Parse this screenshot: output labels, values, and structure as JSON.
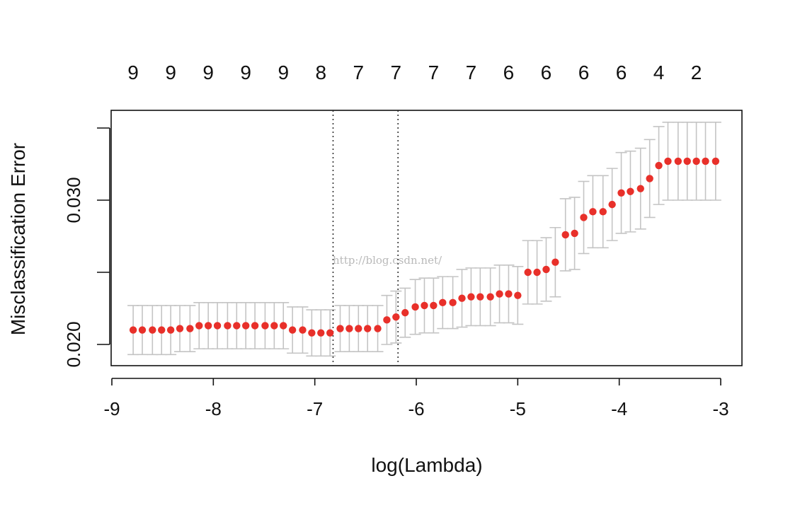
{
  "chart_data": {
    "type": "scatter",
    "title": "",
    "xlabel": "log(Lambda)",
    "ylabel": "Misclassification Error",
    "xlim": [
      -9,
      -3
    ],
    "ylim": [
      0.0192,
      0.0352
    ],
    "x_ticks": [
      -9,
      -8,
      -7,
      -6,
      -5,
      -4,
      -3
    ],
    "x_tick_labels": [
      "-9",
      "-8",
      "-7",
      "-6",
      "-5",
      "-4",
      "-3"
    ],
    "y_ticks": [
      0.02,
      0.025,
      0.03,
      0.035
    ],
    "y_tick_labels": [
      "0.020",
      "",
      "0.030",
      ""
    ],
    "top_axis_labels": [
      {
        "x": -8.79,
        "label": "9"
      },
      {
        "x": -8.42,
        "label": "9"
      },
      {
        "x": -8.05,
        "label": "9"
      },
      {
        "x": -7.68,
        "label": "9"
      },
      {
        "x": -7.31,
        "label": "9"
      },
      {
        "x": -6.94,
        "label": "8"
      },
      {
        "x": -6.57,
        "label": "7"
      },
      {
        "x": -6.2,
        "label": "7"
      },
      {
        "x": -5.83,
        "label": "7"
      },
      {
        "x": -5.46,
        "label": "7"
      },
      {
        "x": -5.09,
        "label": "6"
      },
      {
        "x": -4.72,
        "label": "6"
      },
      {
        "x": -4.35,
        "label": "6"
      },
      {
        "x": -3.98,
        "label": "6"
      },
      {
        "x": -3.61,
        "label": "4"
      },
      {
        "x": -3.24,
        "label": "2"
      }
    ],
    "vlines": [
      -6.82,
      -6.18
    ],
    "grid": false,
    "legend": "none",
    "watermark": "http://blog.csdn.net/",
    "series": [
      {
        "color": "#e8302a",
        "errorbar_color": "#c4c4c4",
        "x": [
          -8.79,
          -8.7,
          -8.6,
          -8.51,
          -8.42,
          -8.33,
          -8.23,
          -8.14,
          -8.05,
          -7.96,
          -7.86,
          -7.77,
          -7.68,
          -7.59,
          -7.49,
          -7.4,
          -7.31,
          -7.22,
          -7.12,
          -7.03,
          -6.94,
          -6.85,
          -6.75,
          -6.66,
          -6.57,
          -6.48,
          -6.38,
          -6.29,
          -6.2,
          -6.11,
          -6.01,
          -5.92,
          -5.83,
          -5.74,
          -5.64,
          -5.55,
          -5.46,
          -5.37,
          -5.27,
          -5.18,
          -5.09,
          -5.0,
          -4.9,
          -4.81,
          -4.72,
          -4.63,
          -4.53,
          -4.44,
          -4.35,
          -4.26,
          -4.16,
          -4.07,
          -3.98,
          -3.89,
          -3.79,
          -3.7,
          -3.61,
          -3.52,
          -3.42,
          -3.33,
          -3.24,
          -3.15,
          -3.05
        ],
        "y": [
          0.021,
          0.021,
          0.021,
          0.021,
          0.021,
          0.0211,
          0.0211,
          0.0213,
          0.0213,
          0.0213,
          0.0213,
          0.0213,
          0.0213,
          0.0213,
          0.0213,
          0.0213,
          0.0213,
          0.021,
          0.021,
          0.0208,
          0.0208,
          0.0208,
          0.0211,
          0.0211,
          0.0211,
          0.0211,
          0.0211,
          0.0217,
          0.0219,
          0.0222,
          0.0226,
          0.0227,
          0.0227,
          0.0229,
          0.0229,
          0.0232,
          0.0233,
          0.0233,
          0.0233,
          0.0235,
          0.0235,
          0.0234,
          0.025,
          0.025,
          0.0252,
          0.0257,
          0.0276,
          0.0277,
          0.0288,
          0.0292,
          0.0292,
          0.0297,
          0.0305,
          0.0306,
          0.0308,
          0.0315,
          0.0324,
          0.0327,
          0.0327,
          0.0327,
          0.0327,
          0.0327,
          0.0327
        ],
        "err": [
          0.0017,
          0.0017,
          0.0017,
          0.0017,
          0.0017,
          0.0016,
          0.0016,
          0.0016,
          0.0016,
          0.0016,
          0.0016,
          0.0016,
          0.0016,
          0.0016,
          0.0016,
          0.0016,
          0.0016,
          0.0016,
          0.0016,
          0.0016,
          0.0016,
          0.0016,
          0.0016,
          0.0016,
          0.0016,
          0.0016,
          0.0016,
          0.0017,
          0.0018,
          0.0017,
          0.0019,
          0.0019,
          0.0019,
          0.0018,
          0.0018,
          0.002,
          0.002,
          0.002,
          0.002,
          0.002,
          0.002,
          0.002,
          0.0022,
          0.0022,
          0.0022,
          0.0024,
          0.0025,
          0.0025,
          0.0025,
          0.0025,
          0.0025,
          0.0025,
          0.0028,
          0.0028,
          0.0028,
          0.0027,
          0.0027,
          0.0027,
          0.0027,
          0.0027,
          0.0027,
          0.0027,
          0.0027
        ]
      }
    ]
  }
}
